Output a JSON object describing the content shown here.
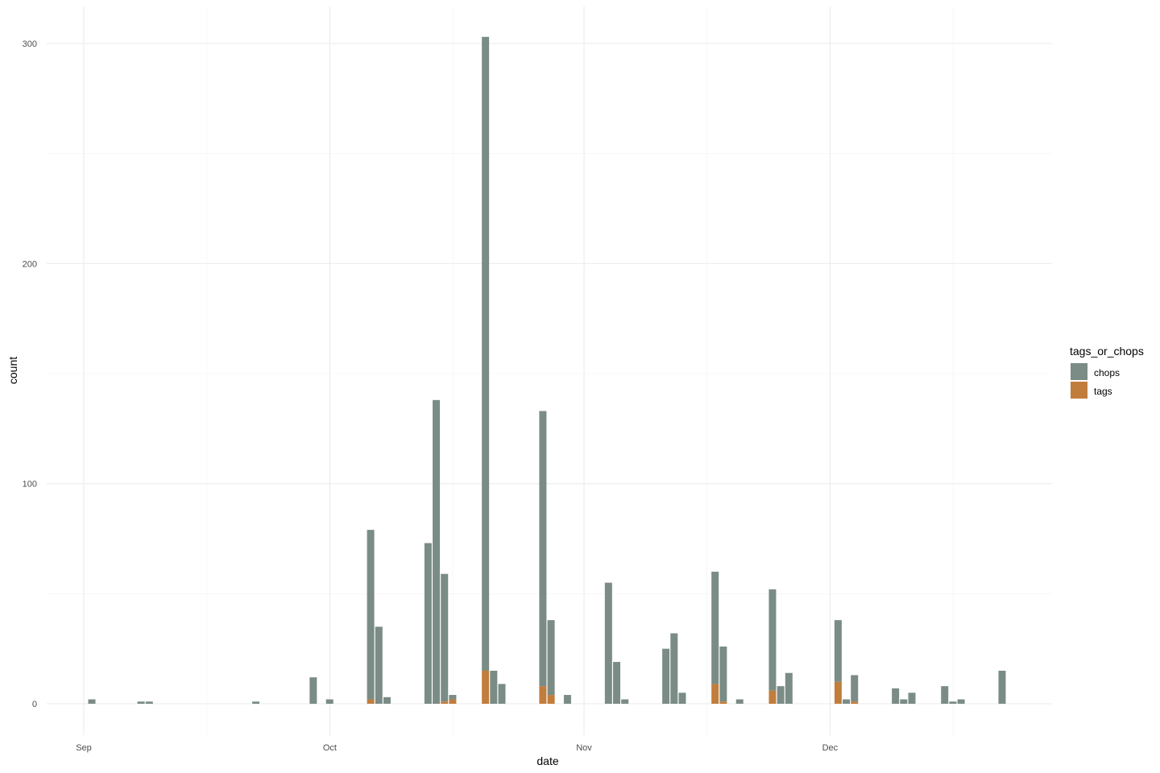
{
  "chart_data": {
    "type": "bar",
    "stacked": true,
    "xlabel": "date",
    "ylabel": "count",
    "x_ticks": [
      "Sep",
      "Oct",
      "Nov",
      "Dec"
    ],
    "y_ticks": [
      "0",
      "100",
      "200",
      "300"
    ],
    "ylim": [
      0,
      315
    ],
    "grid": true,
    "legend": {
      "title": "tags_or_chops",
      "position": "right",
      "entries": [
        {
          "label": "chops",
          "color": "#7a8c85"
        },
        {
          "label": "tags",
          "color": "#c17d3c"
        }
      ]
    },
    "x": [
      "2017-09-01",
      "2017-09-07",
      "2017-09-08",
      "2017-09-21",
      "2017-09-28",
      "2017-09-30",
      "2017-10-05",
      "2017-10-06",
      "2017-10-07",
      "2017-10-12",
      "2017-10-13",
      "2017-10-14",
      "2017-10-15",
      "2017-10-19",
      "2017-10-20",
      "2017-10-21",
      "2017-10-26",
      "2017-10-27",
      "2017-10-29",
      "2017-11-03",
      "2017-11-04",
      "2017-11-05",
      "2017-11-10",
      "2017-11-11",
      "2017-11-12",
      "2017-11-16",
      "2017-11-17",
      "2017-11-19",
      "2017-11-23",
      "2017-11-24",
      "2017-11-25",
      "2017-12-01",
      "2017-12-02",
      "2017-12-03",
      "2017-12-08",
      "2017-12-09",
      "2017-12-10",
      "2017-12-14",
      "2017-12-15",
      "2017-12-16",
      "2017-12-21"
    ],
    "series": [
      {
        "name": "tags",
        "color": "#c17d3c",
        "values": [
          0,
          0,
          0,
          0,
          0,
          0,
          2,
          0,
          0,
          0,
          0,
          1,
          2,
          15,
          0,
          0,
          8,
          4,
          0,
          0,
          0,
          0,
          0,
          0,
          0,
          9,
          1,
          0,
          6,
          0,
          0,
          10,
          0,
          1,
          0,
          0,
          0,
          0,
          0,
          0,
          0
        ]
      },
      {
        "name": "chops",
        "color": "#7a8c85",
        "values": [
          2,
          1,
          1,
          1,
          12,
          2,
          77,
          35,
          3,
          73,
          138,
          58,
          2,
          288,
          15,
          9,
          125,
          34,
          4,
          55,
          19,
          2,
          25,
          32,
          5,
          51,
          25,
          2,
          46,
          8,
          14,
          28,
          2,
          12,
          7,
          2,
          5,
          8,
          1,
          2,
          15
        ]
      }
    ]
  }
}
